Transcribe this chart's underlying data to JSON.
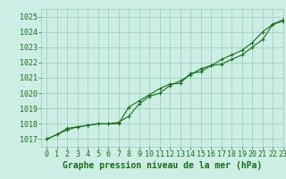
{
  "line1_x": [
    0,
    1,
    2,
    3,
    4,
    5,
    6,
    7,
    8,
    9,
    10,
    11,
    12,
    13,
    14,
    15,
    16,
    17,
    18,
    19,
    20,
    21,
    22,
    23
  ],
  "line1_y": [
    1017.0,
    1017.3,
    1017.7,
    1017.8,
    1017.9,
    1018.0,
    1018.0,
    1018.1,
    1018.5,
    1019.3,
    1019.8,
    1020.0,
    1020.5,
    1020.8,
    1021.2,
    1021.6,
    1021.8,
    1022.2,
    1022.5,
    1022.8,
    1023.3,
    1024.0,
    1024.5,
    1024.8
  ],
  "line2_x": [
    0,
    1,
    2,
    3,
    4,
    5,
    6,
    7,
    8,
    9,
    10,
    11,
    12,
    13,
    14,
    15,
    16,
    17,
    18,
    19,
    20,
    21,
    22,
    23
  ],
  "line2_y": [
    1017.0,
    1017.3,
    1017.6,
    1017.8,
    1017.9,
    1018.0,
    1018.0,
    1018.0,
    1019.1,
    1019.5,
    1019.9,
    1020.3,
    1020.6,
    1020.65,
    1021.3,
    1021.4,
    1021.8,
    1021.9,
    1022.2,
    1022.5,
    1023.0,
    1023.5,
    1024.5,
    1024.7
  ],
  "line_color": "#1a6e1a",
  "bg_color": "#cceee4",
  "grid_color": "#99ccbb",
  "xlabel": "Graphe pression niveau de la mer (hPa)",
  "ylim": [
    1016.5,
    1025.5
  ],
  "xlim": [
    -0.5,
    23
  ],
  "yticks": [
    1017,
    1018,
    1019,
    1020,
    1021,
    1022,
    1023,
    1024,
    1025
  ],
  "xticks": [
    0,
    1,
    2,
    3,
    4,
    5,
    6,
    7,
    8,
    9,
    10,
    11,
    12,
    13,
    14,
    15,
    16,
    17,
    18,
    19,
    20,
    21,
    22,
    23
  ],
  "marker": "+",
  "linewidth": 0.8,
  "markersize": 3,
  "xlabel_fontsize": 7,
  "tick_fontsize": 6
}
